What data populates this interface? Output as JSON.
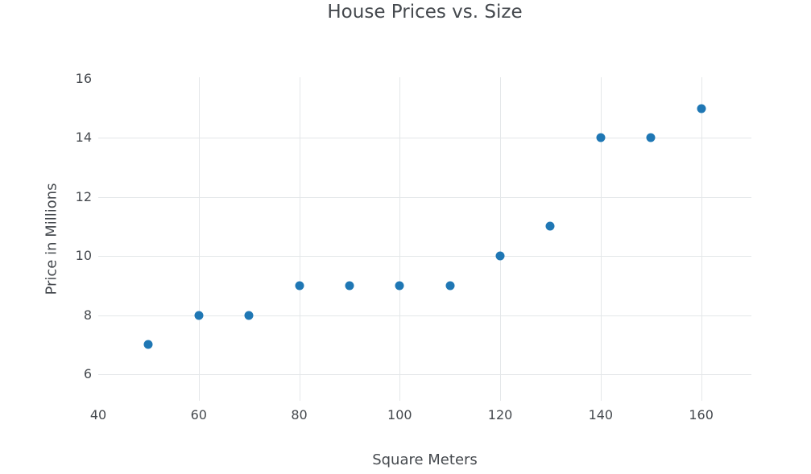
{
  "chart_data": {
    "type": "scatter",
    "title": "House Prices vs. Size",
    "xlabel": "Square Meters",
    "ylabel": "Price in Millions",
    "x": [
      50,
      60,
      70,
      80,
      90,
      100,
      110,
      120,
      130,
      140,
      150,
      160
    ],
    "y": [
      7,
      8,
      8,
      9,
      9,
      9,
      9,
      10,
      11,
      14,
      14,
      15
    ],
    "xlim": [
      40,
      170
    ],
    "ylim": [
      5.1,
      16.05
    ],
    "xticks": [
      40,
      60,
      80,
      100,
      120,
      140,
      160
    ],
    "yticks": [
      6,
      8,
      10,
      12,
      14,
      16
    ],
    "grid": true,
    "legend_visible": false,
    "colors": {
      "marker": "#1f77b4",
      "grid": "#e4e7e9",
      "text": "#45494e",
      "background": "#ffffff"
    },
    "marker_size": 11
  }
}
